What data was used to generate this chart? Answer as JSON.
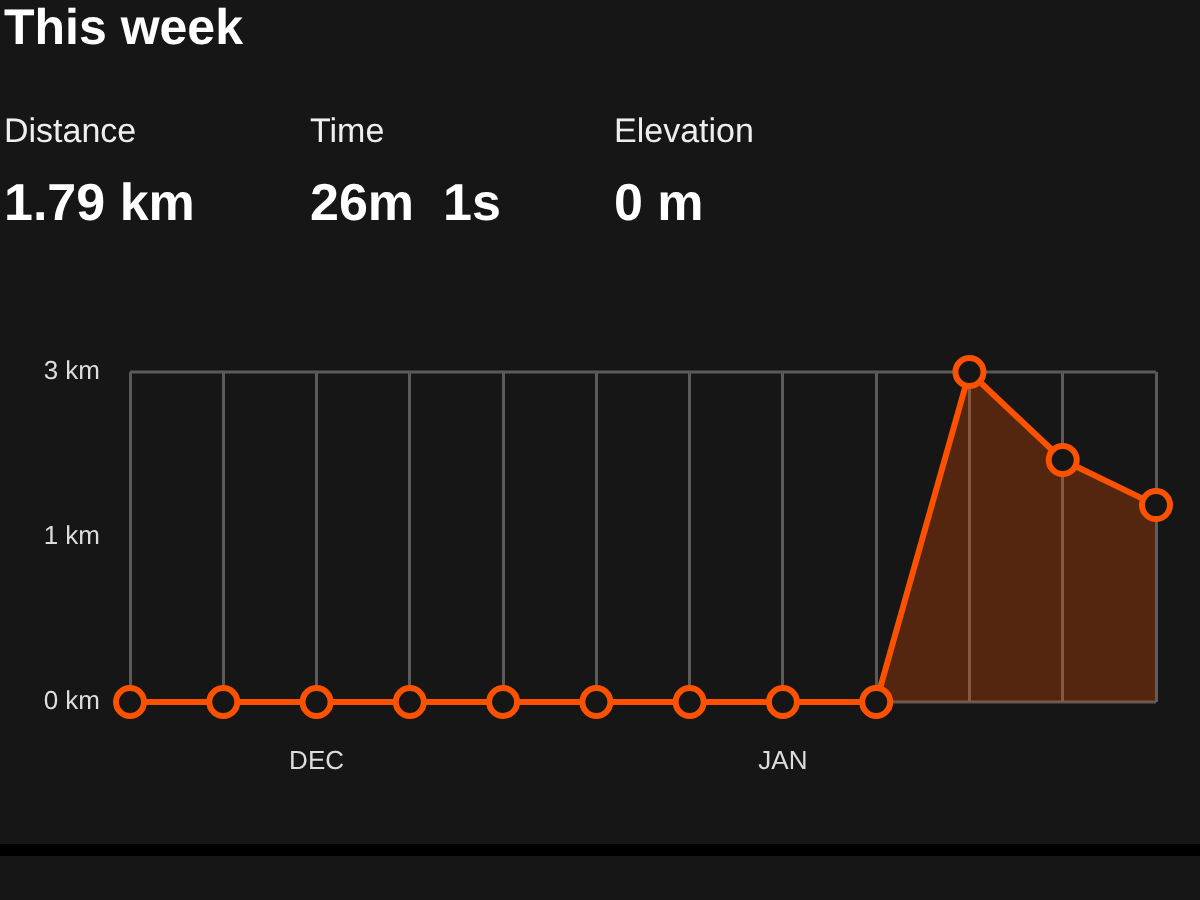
{
  "chart_data": {
    "type": "area",
    "title": "This week",
    "annotations": [
      "Distance",
      "1.79 km",
      "Time",
      "26m  1s",
      "Elevation",
      "0 m"
    ],
    "categories": [
      null,
      null,
      "DEC",
      null,
      null,
      null,
      null,
      "JAN",
      null,
      null,
      null,
      null
    ],
    "series": [
      {
        "color": "#fc5200",
        "values": [
          0,
          0,
          0,
          0,
          0,
          0,
          0,
          0,
          0,
          3,
          2.2,
          1.79
        ]
      }
    ],
    "ylim": [
      0,
      3
    ],
    "yticks": [
      {
        "value": 0,
        "label": "0 km"
      },
      {
        "value": 1.5,
        "label": "1 km"
      },
      {
        "value": 3,
        "label": "3 km"
      }
    ],
    "grid": "x",
    "marker": "circle",
    "line_style": "solid",
    "legend": false
  }
}
